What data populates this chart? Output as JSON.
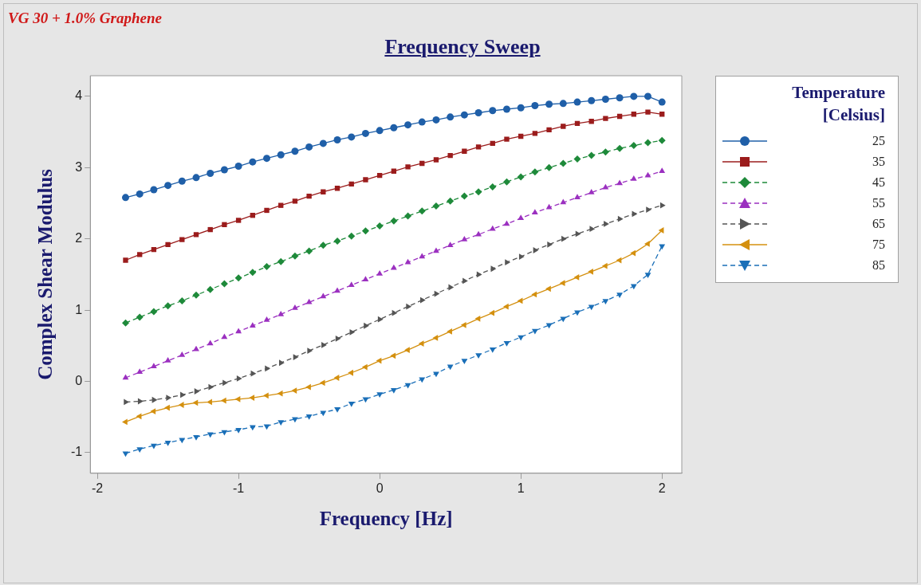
{
  "chart_data": {
    "type": "line",
    "title": "Frequency Sweep",
    "xlabel": "Frequency [Hz]",
    "ylabel": "Complex Shear Modulus",
    "legend_title": "Temperature [Celsius]",
    "annotations": [
      "VG 30 + 1.0% Graphene"
    ],
    "x": [
      -1.8,
      -1.7,
      -1.6,
      -1.5,
      -1.4,
      -1.3,
      -1.2,
      -1.1,
      -1.0,
      -0.9,
      -0.8,
      -0.7,
      -0.6,
      -0.5,
      -0.4,
      -0.3,
      -0.2,
      -0.1,
      0,
      0.1,
      0.2,
      0.3,
      0.4,
      0.5,
      0.6,
      0.7,
      0.8,
      0.9,
      1.0,
      1.1,
      1.2,
      1.3,
      1.4,
      1.5,
      1.6,
      1.7,
      1.8,
      1.9,
      2.0
    ],
    "xlim": [
      -2.05,
      2.14
    ],
    "xticks": [
      -2,
      -1,
      0,
      1,
      2
    ],
    "ylim": [
      -1.29,
      4.29
    ],
    "yticks": [
      -1,
      0,
      1,
      2,
      3,
      4
    ],
    "grid": false,
    "legend": "right",
    "series": [
      {
        "name": "25",
        "color": "#1f5fa8",
        "marker": "circle",
        "line_style": "solid",
        "values": [
          2.58,
          2.63,
          2.69,
          2.75,
          2.81,
          2.86,
          2.92,
          2.97,
          3.02,
          3.08,
          3.13,
          3.18,
          3.23,
          3.29,
          3.34,
          3.39,
          3.43,
          3.48,
          3.52,
          3.56,
          3.6,
          3.64,
          3.67,
          3.71,
          3.74,
          3.77,
          3.8,
          3.82,
          3.84,
          3.87,
          3.89,
          3.9,
          3.92,
          3.94,
          3.96,
          3.98,
          4.0,
          4.0,
          3.92
        ]
      },
      {
        "name": "35",
        "color": "#9b1c1c",
        "marker": "square",
        "line_style": "solid",
        "values": [
          1.7,
          1.78,
          1.85,
          1.92,
          1.99,
          2.06,
          2.13,
          2.2,
          2.26,
          2.33,
          2.4,
          2.47,
          2.53,
          2.6,
          2.66,
          2.71,
          2.77,
          2.83,
          2.89,
          2.95,
          3.01,
          3.06,
          3.11,
          3.17,
          3.23,
          3.29,
          3.34,
          3.4,
          3.44,
          3.48,
          3.53,
          3.58,
          3.62,
          3.65,
          3.69,
          3.72,
          3.75,
          3.78,
          3.75
        ]
      },
      {
        "name": "45",
        "color": "#1e8a3a",
        "marker": "diamond",
        "line_style": "dashed",
        "values": [
          0.82,
          0.9,
          0.98,
          1.06,
          1.13,
          1.21,
          1.29,
          1.37,
          1.45,
          1.53,
          1.61,
          1.68,
          1.76,
          1.83,
          1.91,
          1.97,
          2.04,
          2.11,
          2.18,
          2.25,
          2.32,
          2.39,
          2.46,
          2.53,
          2.6,
          2.66,
          2.73,
          2.8,
          2.87,
          2.94,
          3.0,
          3.06,
          3.12,
          3.17,
          3.22,
          3.27,
          3.31,
          3.35,
          3.38
        ]
      },
      {
        "name": "55",
        "color": "#9b30c0",
        "marker": "triangle",
        "line_style": "dashed",
        "values": [
          0.05,
          0.13,
          0.21,
          0.29,
          0.37,
          0.45,
          0.53,
          0.62,
          0.7,
          0.78,
          0.86,
          0.94,
          1.03,
          1.11,
          1.19,
          1.27,
          1.35,
          1.43,
          1.51,
          1.59,
          1.67,
          1.75,
          1.83,
          1.91,
          1.99,
          2.06,
          2.14,
          2.21,
          2.29,
          2.37,
          2.44,
          2.51,
          2.58,
          2.65,
          2.72,
          2.78,
          2.84,
          2.89,
          2.95
        ]
      },
      {
        "name": "65",
        "color": "#555555",
        "marker": "triangle-right",
        "line_style": "dashed",
        "values": [
          -0.29,
          -0.28,
          -0.26,
          -0.23,
          -0.19,
          -0.14,
          -0.08,
          -0.02,
          0.04,
          0.11,
          0.18,
          0.26,
          0.34,
          0.43,
          0.51,
          0.6,
          0.69,
          0.78,
          0.87,
          0.96,
          1.05,
          1.14,
          1.23,
          1.32,
          1.41,
          1.5,
          1.58,
          1.67,
          1.75,
          1.84,
          1.92,
          2.0,
          2.07,
          2.14,
          2.21,
          2.28,
          2.35,
          2.41,
          2.47
        ]
      },
      {
        "name": "75",
        "color": "#d4900f",
        "marker": "triangle-left",
        "line_style": "solid",
        "values": [
          -0.57,
          -0.49,
          -0.42,
          -0.37,
          -0.33,
          -0.3,
          -0.29,
          -0.27,
          -0.25,
          -0.23,
          -0.2,
          -0.17,
          -0.13,
          -0.08,
          -0.02,
          0.05,
          0.12,
          0.2,
          0.29,
          0.36,
          0.44,
          0.53,
          0.61,
          0.7,
          0.79,
          0.88,
          0.96,
          1.05,
          1.13,
          1.22,
          1.3,
          1.38,
          1.46,
          1.54,
          1.62,
          1.7,
          1.8,
          1.93,
          2.12
        ]
      },
      {
        "name": "85",
        "color": "#1a6fb8",
        "marker": "triangle-down",
        "line_style": "dashed",
        "values": [
          -1.01,
          -0.95,
          -0.9,
          -0.86,
          -0.82,
          -0.78,
          -0.74,
          -0.71,
          -0.68,
          -0.64,
          -0.63,
          -0.57,
          -0.53,
          -0.49,
          -0.44,
          -0.39,
          -0.31,
          -0.25,
          -0.18,
          -0.12,
          -0.05,
          0.03,
          0.11,
          0.21,
          0.29,
          0.37,
          0.45,
          0.54,
          0.62,
          0.71,
          0.79,
          0.88,
          0.97,
          1.05,
          1.13,
          1.22,
          1.34,
          1.5,
          1.9
        ]
      }
    ]
  }
}
